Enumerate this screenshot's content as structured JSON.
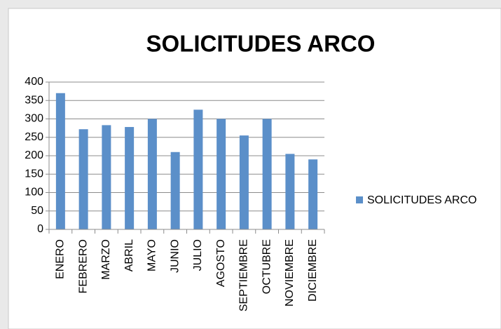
{
  "chart_data": {
    "type": "bar",
    "title": "SOLICITUDES ARCO",
    "categories": [
      "ENERO",
      "FEBRERO",
      "MARZO",
      "ABRIL",
      "MAYO",
      "JUNIO",
      "JULIO",
      "AGOSTO",
      "SEPTIEMBRE",
      "OCTUBRE",
      "NOVIEMBRE",
      "DICIEMBRE"
    ],
    "series": [
      {
        "name": "SOLICITUDES ARCO",
        "color": "#5b8fc9",
        "values": [
          370,
          272,
          283,
          278,
          300,
          210,
          325,
          300,
          255,
          300,
          205,
          190
        ]
      }
    ],
    "ylim": [
      0,
      400
    ],
    "yticks": [
      0,
      50,
      100,
      150,
      200,
      250,
      300,
      350,
      400
    ],
    "grid": true,
    "legend": "right"
  }
}
